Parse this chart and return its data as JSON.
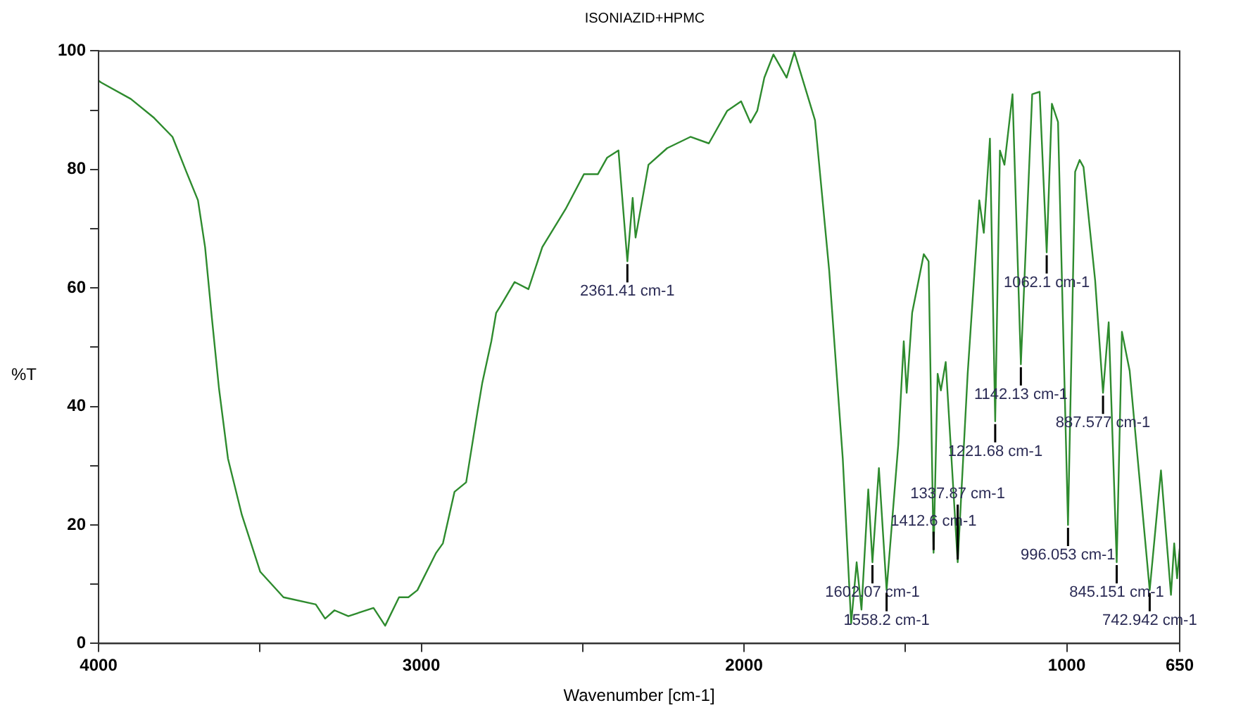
{
  "chart_data": {
    "type": "line",
    "title": "ISONIAZID+HPMC",
    "xlabel": "Wavenumber [cm-1]",
    "ylabel": "%T",
    "xlim": [
      4000,
      650
    ],
    "xticks": [
      4000,
      {
        "value": 3500,
        "label": null
      },
      3000,
      {
        "value": 2500,
        "label": null
      },
      2000,
      {
        "value": 1500,
        "label": null
      },
      1000,
      650
    ],
    "ylim": [
      0,
      100
    ],
    "yticks": [
      0,
      {
        "value": 10,
        "label": null
      },
      20,
      {
        "value": 30,
        "label": null
      },
      40,
      {
        "value": 50,
        "label": null
      },
      60,
      {
        "value": 70,
        "label": null
      },
      80,
      {
        "value": 90,
        "label": null
      },
      100
    ],
    "grid": false,
    "legend": false,
    "marker": "none",
    "line_style": "solid",
    "x": [
      4000,
      3993,
      3900,
      3828,
      3771,
      3728,
      3692,
      3670,
      3649,
      3627,
      3599,
      3556,
      3499,
      3427,
      3327,
      3298,
      3269,
      3226,
      3148,
      3112,
      3069,
      3040,
      3012,
      2954,
      2933,
      2897,
      2861,
      2826,
      2811,
      2783,
      2768,
      2754,
      2711,
      2668,
      2625,
      2553,
      2496,
      2453,
      2424,
      2389,
      2361.41,
      2345,
      2336,
      2296,
      2238,
      2166,
      2109,
      2052,
      2009,
      1980,
      1959,
      1937,
      1909,
      1868,
      1844,
      1780,
      1736,
      1694,
      1668,
      1651,
      1636,
      1615,
      1602.07,
      1582,
      1558.2,
      1522,
      1505,
      1496,
      1479,
      1443,
      1428,
      1412.6,
      1400,
      1390,
      1375,
      1337.87,
      1307,
      1271,
      1257,
      1238,
      1221.68,
      1207,
      1193,
      1168,
      1142.13,
      1107,
      1084,
      1062.1,
      1046,
      1027,
      996.053,
      974,
      960,
      948,
      912,
      887.577,
      870,
      845.151,
      829,
      805,
      742.942,
      708,
      677,
      667,
      658,
      650
    ],
    "series": [
      {
        "color": "#2e8b2e",
        "values": [
          95,
          94.7,
          91.9,
          88.7,
          85.5,
          79.6,
          74.8,
          66.9,
          55,
          43.1,
          31.2,
          21.7,
          12.1,
          7.8,
          6.6,
          4.2,
          5.6,
          4.6,
          6.0,
          3.0,
          7.8,
          7.8,
          9.0,
          15.3,
          16.9,
          25.6,
          27.2,
          39.1,
          44,
          51,
          55.8,
          57,
          61,
          59.8,
          66.9,
          73.3,
          79.2,
          79.2,
          82,
          83.2,
          64.5,
          75.2,
          68.5,
          80.8,
          83.6,
          85.5,
          84.4,
          89.9,
          91.5,
          87.9,
          89.9,
          95.5,
          99.4,
          95.5,
          99.8,
          88.3,
          62.9,
          31.2,
          3.4,
          13.7,
          5.7,
          26,
          13.7,
          29.6,
          9.0,
          33.6,
          51,
          42.3,
          55.8,
          65.7,
          64.5,
          15.3,
          45.5,
          42.7,
          47.5,
          13.7,
          45.5,
          74.8,
          69.3,
          85.2,
          37.5,
          83.2,
          80.8,
          92.7,
          47.1,
          92.7,
          93.1,
          66,
          91.1,
          88,
          20,
          79.6,
          81.6,
          80.4,
          61.3,
          42.3,
          54.2,
          13.7,
          52.6,
          46,
          9.0,
          29.2,
          8.2,
          16.9,
          11,
          16
        ]
      }
    ],
    "annotations": [
      {
        "text": "2361.41 cm-1",
        "x": 2361.41,
        "y": 64.5
      },
      {
        "text": "1602.07 cm-1",
        "x": 1602.07,
        "y": 13.7
      },
      {
        "text": "1558.2 cm-1",
        "x": 1558.2,
        "y": 9.0
      },
      {
        "text": "1412.6 cm-1",
        "x": 1412.6,
        "y": 15.3
      },
      {
        "text": "1337.87 cm-1",
        "x": 1337.87,
        "y": 13.7
      },
      {
        "text": "1221.68 cm-1",
        "x": 1221.68,
        "y": 37.5
      },
      {
        "text": "1142.13 cm-1",
        "x": 1142.13,
        "y": 47.1
      },
      {
        "text": "1062.1 cm-1",
        "x": 1062.1,
        "y": 66
      },
      {
        "text": "996.053 cm-1",
        "x": 996.053,
        "y": 20
      },
      {
        "text": "887.577 cm-1",
        "x": 887.577,
        "y": 42.3
      },
      {
        "text": "845.151 cm-1",
        "x": 845.151,
        "y": 13.7
      },
      {
        "text": "742.942 cm-1",
        "x": 742.942,
        "y": 9.0
      }
    ]
  }
}
